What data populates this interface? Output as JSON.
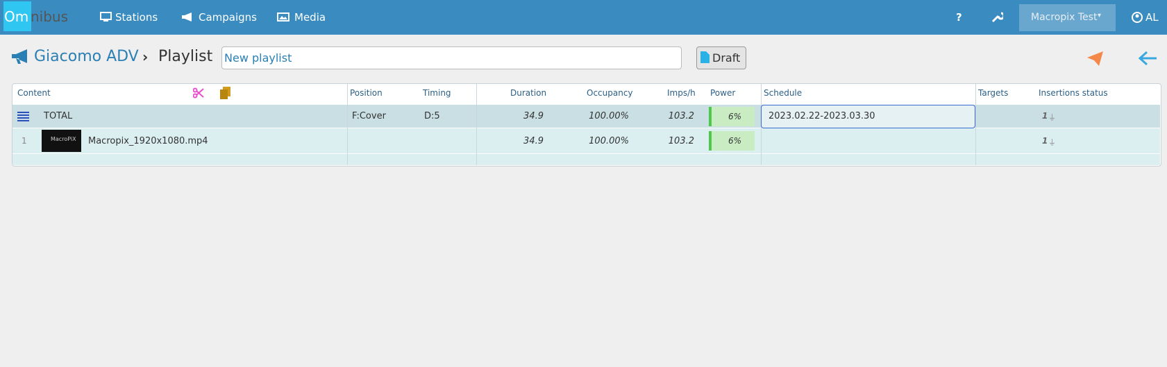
{
  "nav": {
    "brand": [
      "Om",
      "nibus"
    ],
    "items": [
      "Stations",
      "Campaigns",
      "Media"
    ],
    "help": "?",
    "account": "Macropix Test",
    "user": "AL"
  },
  "breadcrumb": {
    "campaign": "Giacomo ADV",
    "page": "Playlist",
    "name": "New playlist",
    "status": "Draft"
  },
  "table": {
    "headers": [
      "Content",
      "Position",
      "Timing",
      "Duration",
      "Occupancy",
      "Imps/h",
      "Power",
      "Schedule",
      "Targets",
      "Insertions status"
    ],
    "total": {
      "label": "TOTAL",
      "position": "F:Cover",
      "timing": "D:5",
      "duration": "34.9",
      "occupancy": "100.00%",
      "imps": "103.2",
      "power": "6%",
      "schedule": "2023.02.22-2023.03.30",
      "insertions": "1"
    },
    "rows": [
      {
        "index": "1",
        "thumb": "MacroPiX",
        "name": "Macropix_1920x1080.mp4",
        "duration": "34.9",
        "occupancy": "100.00%",
        "imps": "103.2",
        "power": "6%",
        "insertions": "1"
      }
    ]
  }
}
